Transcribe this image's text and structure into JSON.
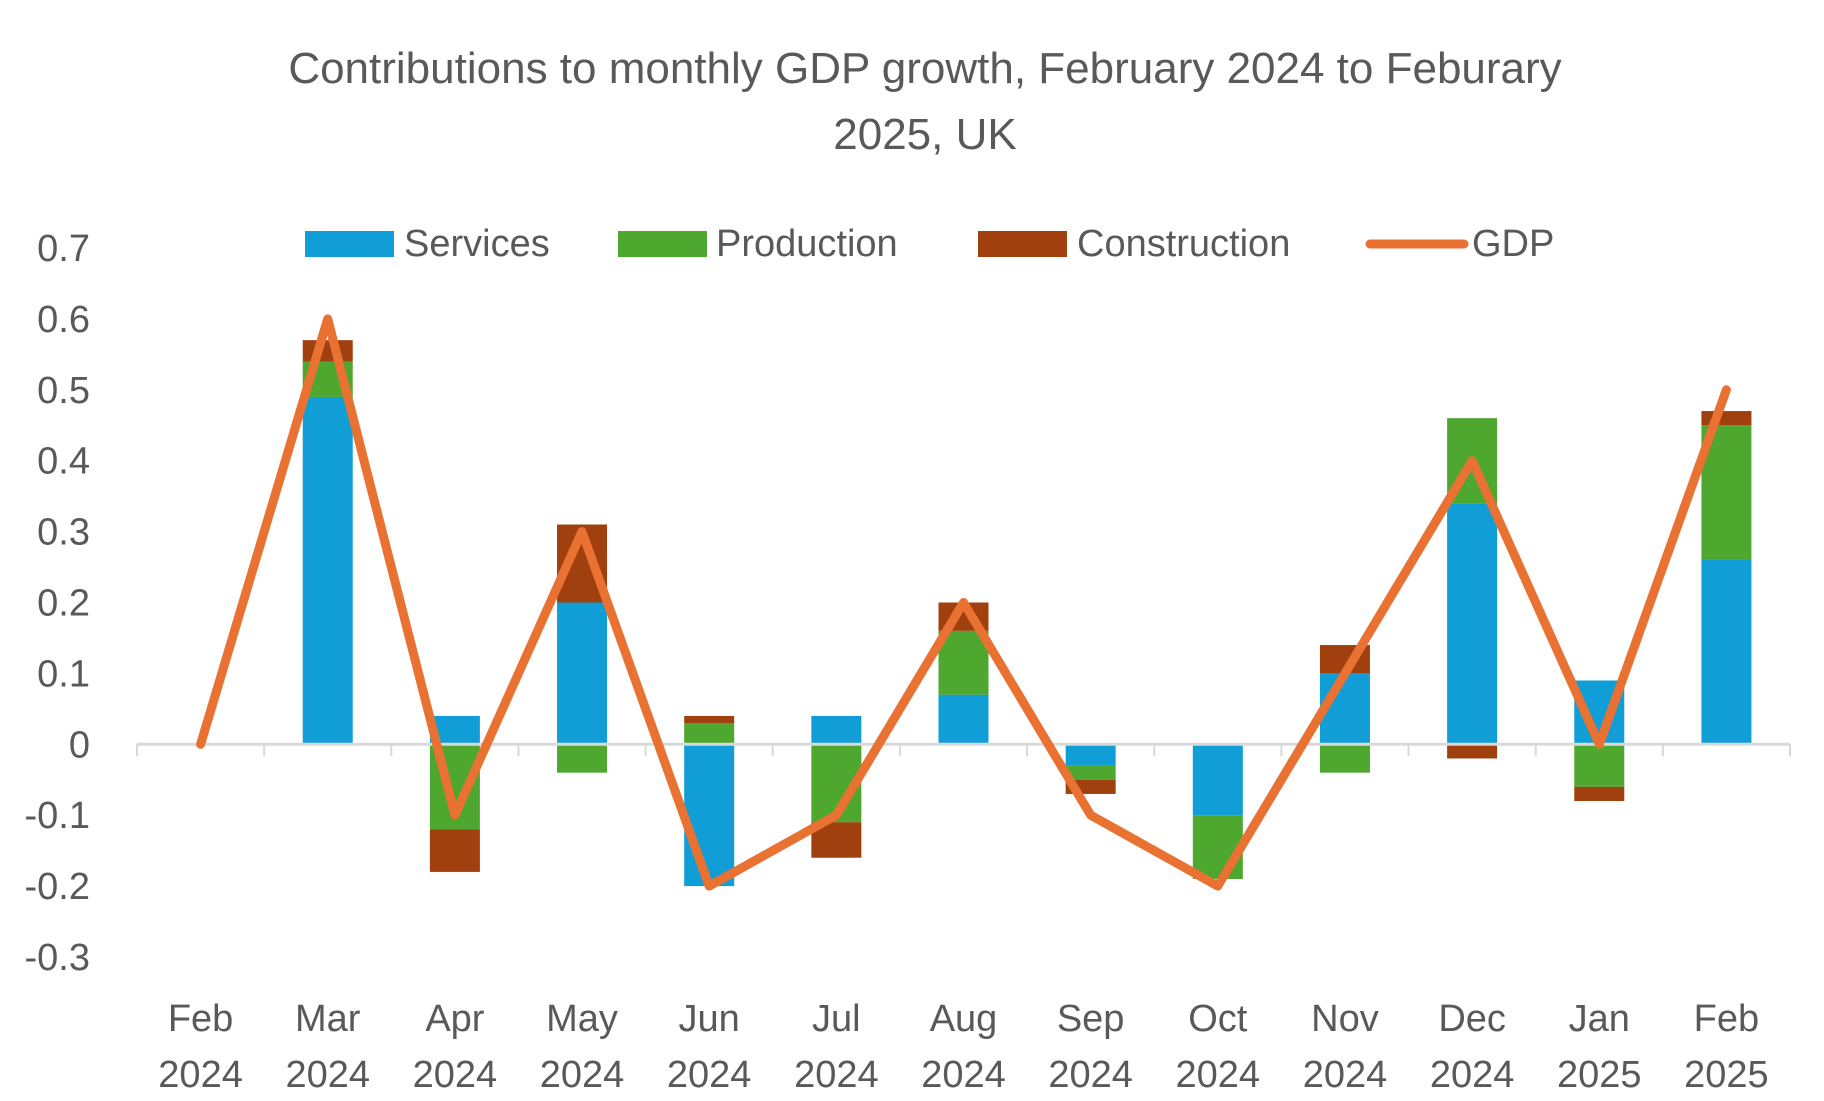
{
  "chart_data": {
    "type": "bar",
    "stacked": true,
    "title_lines": [
      "Contributions to monthly GDP growth, February 2024 to Feburary",
      "2025, UK"
    ],
    "categories": [
      [
        "Feb",
        "2024"
      ],
      [
        "Mar",
        "2024"
      ],
      [
        "Apr",
        "2024"
      ],
      [
        "May",
        "2024"
      ],
      [
        "Jun",
        "2024"
      ],
      [
        "Jul",
        "2024"
      ],
      [
        "Aug",
        "2024"
      ],
      [
        "Sep",
        "2024"
      ],
      [
        "Oct",
        "2024"
      ],
      [
        "Nov",
        "2024"
      ],
      [
        "Dec",
        "2024"
      ],
      [
        "Jan",
        "2025"
      ],
      [
        "Feb",
        "2025"
      ]
    ],
    "ylim": [
      -0.3,
      0.7
    ],
    "yticks": [
      "0.7",
      "0.6",
      "0.5",
      "0.4",
      "0.3",
      "0.2",
      "0.1",
      "0",
      "-0.1",
      "-0.2",
      "-0.3"
    ],
    "ytick_values": [
      0.7,
      0.6,
      0.5,
      0.4,
      0.3,
      0.2,
      0.1,
      0,
      -0.1,
      -0.2,
      -0.3
    ],
    "legend_position": "top",
    "series": [
      {
        "name": "Services",
        "kind": "bar",
        "color": "#119ED6",
        "values": [
          0,
          0.49,
          0.04,
          0.2,
          -0.2,
          0.04,
          0.07,
          -0.03,
          -0.1,
          0.1,
          0.34,
          0.09,
          0.26
        ]
      },
      {
        "name": "Production",
        "kind": "bar",
        "color": "#4EA72E",
        "values": [
          0,
          0.05,
          -0.12,
          -0.04,
          0.03,
          -0.11,
          0.09,
          -0.02,
          -0.09,
          -0.04,
          0.12,
          -0.06,
          0.19
        ]
      },
      {
        "name": "Construction",
        "kind": "bar",
        "color": "#A0400F",
        "values": [
          0,
          0.03,
          -0.06,
          0.11,
          0.01,
          -0.05,
          0.04,
          -0.02,
          0,
          0.04,
          -0.02,
          -0.02,
          0.02
        ]
      },
      {
        "name": "GDP",
        "kind": "line",
        "color": "#E97132",
        "values": [
          0,
          0.6,
          -0.1,
          0.3,
          -0.2,
          -0.1,
          0.2,
          -0.1,
          -0.2,
          0.1,
          0.4,
          0,
          0.5
        ]
      }
    ]
  }
}
